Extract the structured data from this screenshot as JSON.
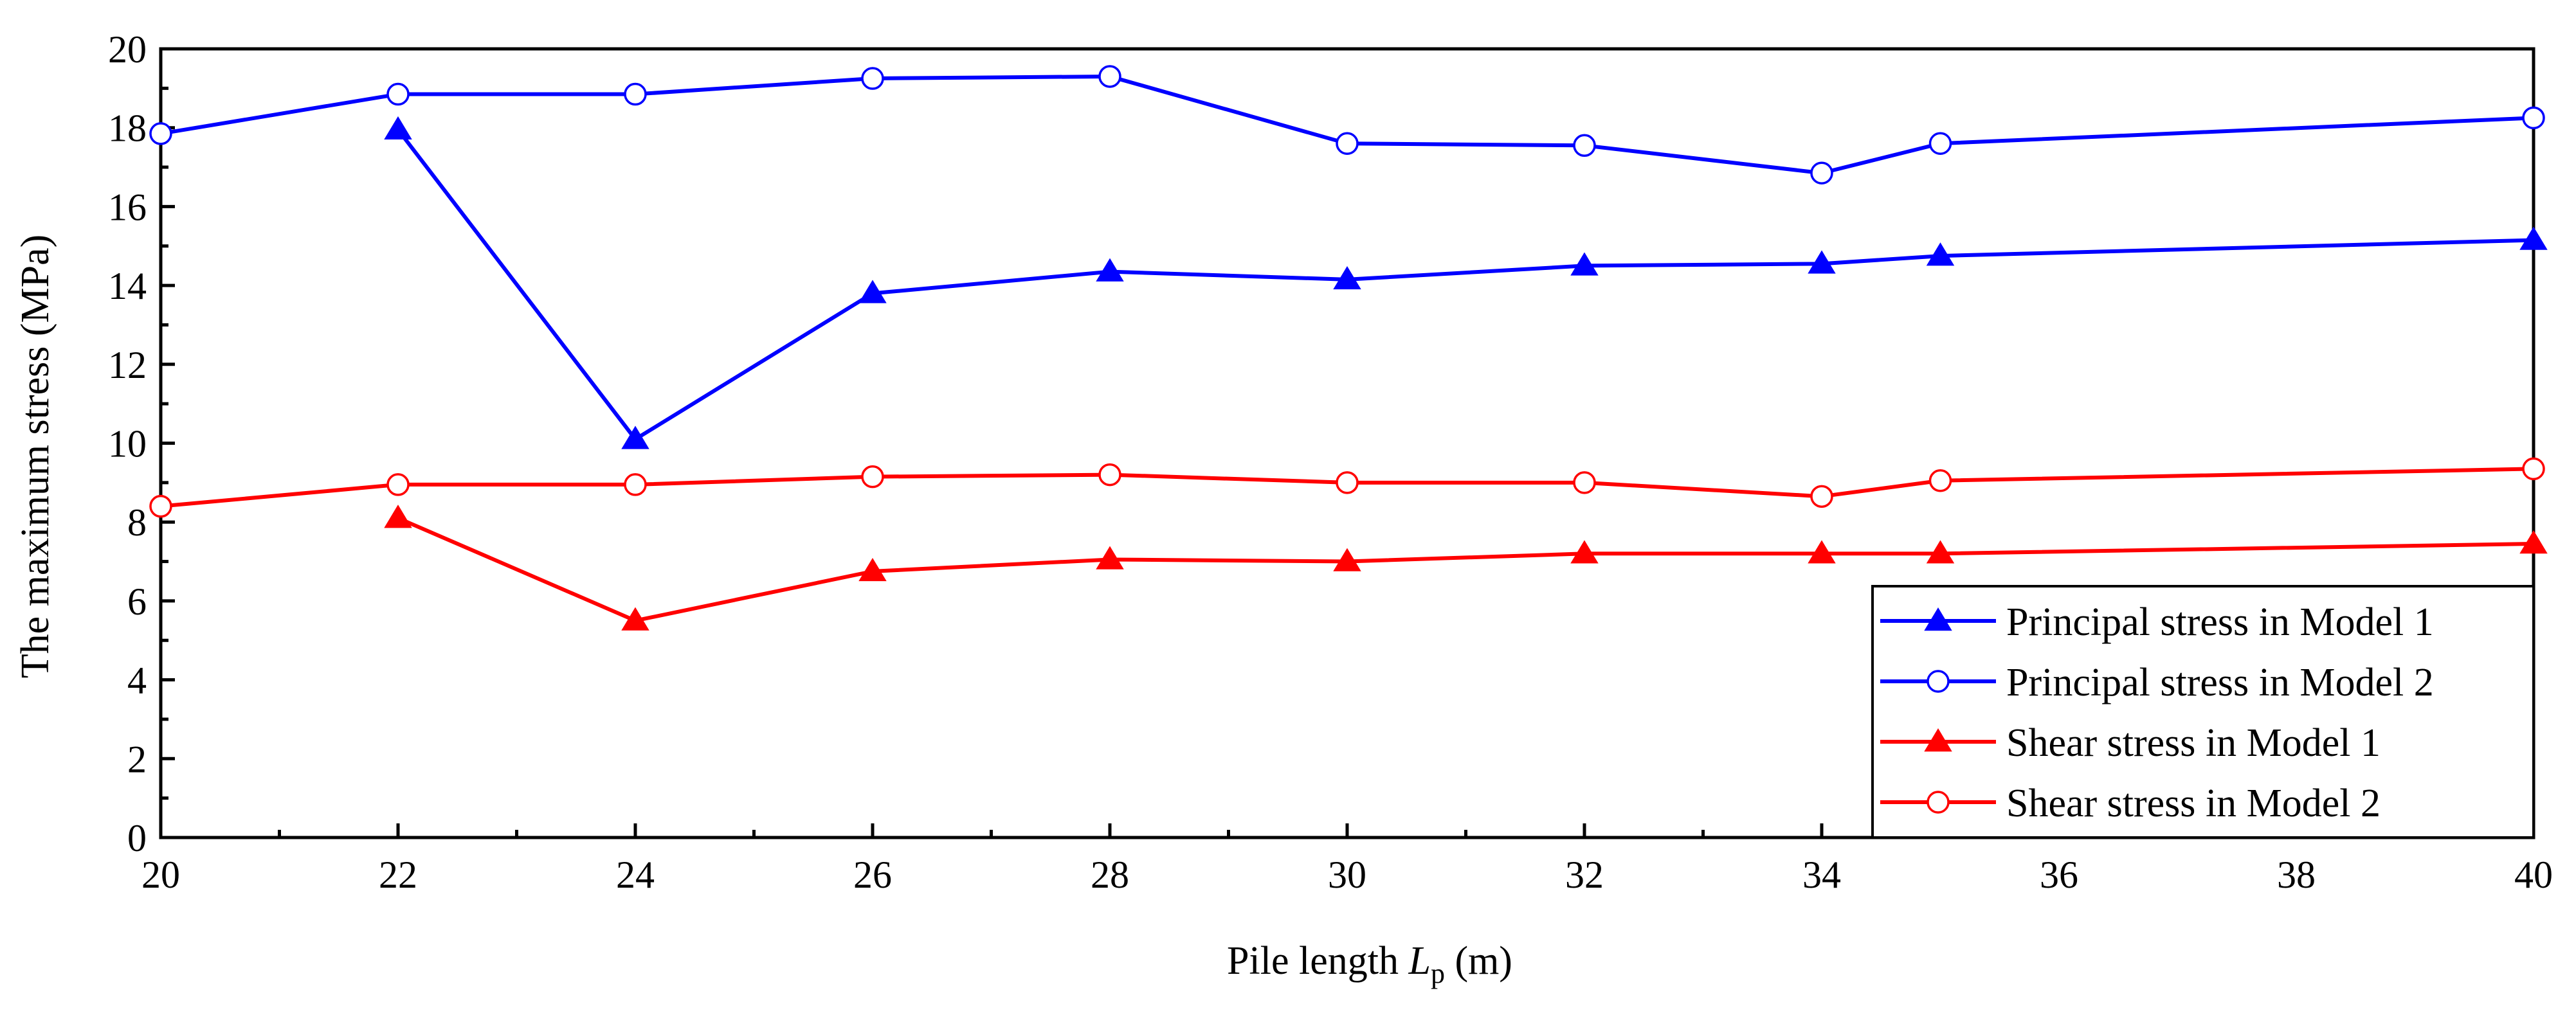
{
  "chart_data": {
    "type": "line",
    "title": "",
    "xlabel_prefix": "Pile length ",
    "xlabel_var": "L",
    "xlabel_sub": "p",
    "xlabel_suffix": " (m)",
    "ylabel": "The maximum stress (MPa)",
    "xlim": [
      20,
      40
    ],
    "ylim": [
      0,
      20
    ],
    "x_ticks": [
      20,
      22,
      24,
      26,
      28,
      30,
      32,
      34,
      36,
      38,
      40
    ],
    "y_ticks": [
      0,
      2,
      4,
      6,
      8,
      10,
      12,
      14,
      16,
      18,
      20
    ],
    "grid": false,
    "legend_position": "bottom-right",
    "series": [
      {
        "name": "Principal stress in Model 1",
        "color": "#0000ff",
        "marker": "triangle-filled",
        "x": [
          22,
          24,
          26,
          28,
          30,
          32,
          34,
          35,
          40
        ],
        "values": [
          17.95,
          10.1,
          13.8,
          14.35,
          14.15,
          14.5,
          14.55,
          14.75,
          15.15
        ]
      },
      {
        "name": "Principal stress in Model 2",
        "color": "#0000ff",
        "marker": "circle-open",
        "x": [
          20,
          22,
          24,
          26,
          28,
          30,
          32,
          34,
          35,
          40
        ],
        "values": [
          17.85,
          18.85,
          18.85,
          19.25,
          19.3,
          17.6,
          17.55,
          16.85,
          17.6,
          18.25
        ]
      },
      {
        "name": "Shear stress in Model 1",
        "color": "#ff0000",
        "marker": "triangle-filled",
        "x": [
          22,
          24,
          26,
          28,
          30,
          32,
          34,
          35,
          40
        ],
        "values": [
          8.1,
          5.5,
          6.75,
          7.05,
          7.0,
          7.2,
          7.2,
          7.2,
          7.45
        ]
      },
      {
        "name": "Shear stress in Model 2",
        "color": "#ff0000",
        "marker": "circle-open",
        "x": [
          20,
          22,
          24,
          26,
          28,
          30,
          32,
          34,
          35,
          40
        ],
        "values": [
          8.4,
          8.95,
          8.95,
          9.15,
          9.2,
          9.0,
          9.0,
          8.65,
          9.05,
          9.35
        ]
      }
    ]
  }
}
